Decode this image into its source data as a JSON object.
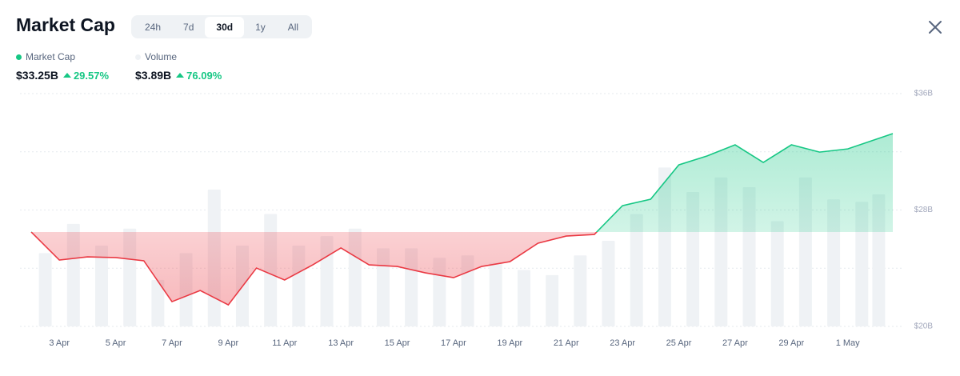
{
  "header": {
    "title": "Market Cap",
    "tabs": [
      "24h",
      "7d",
      "30d",
      "1y",
      "All"
    ],
    "active_tab": 2
  },
  "summary": [
    {
      "name": "Market Cap",
      "value": "$33.25B",
      "change": "29.57%"
    },
    {
      "name": "Volume",
      "value": "$3.89B",
      "change": "76.09%"
    }
  ],
  "chart_data": {
    "type": "area-line",
    "x": [
      0,
      1,
      2,
      3,
      4,
      5,
      6,
      7,
      8,
      9,
      10,
      11,
      12,
      13,
      14,
      15,
      16,
      17,
      18,
      19,
      20,
      21,
      22,
      23,
      24,
      25,
      26,
      27,
      28,
      29,
      30.6
    ],
    "xlim": [
      0,
      30.6
    ],
    "xticks": [
      {
        "value": 1,
        "label": "3 Apr"
      },
      {
        "value": 3,
        "label": "5 Apr"
      },
      {
        "value": 5,
        "label": "7 Apr"
      },
      {
        "value": 7,
        "label": "9 Apr"
      },
      {
        "value": 9,
        "label": "11 Apr"
      },
      {
        "value": 11,
        "label": "13 Apr"
      },
      {
        "value": 13,
        "label": "15 Apr"
      },
      {
        "value": 15,
        "label": "17 Apr"
      },
      {
        "value": 17,
        "label": "19 Apr"
      },
      {
        "value": 19,
        "label": "21 Apr"
      },
      {
        "value": 21,
        "label": "23 Apr"
      },
      {
        "value": 23,
        "label": "25 Apr"
      },
      {
        "value": 25,
        "label": "27 Apr"
      },
      {
        "value": 27,
        "label": "29 Apr"
      },
      {
        "value": 29,
        "label": "1 May"
      }
    ],
    "ylim": [
      20,
      36
    ],
    "yticks": [
      {
        "value": 20,
        "label": "$20B"
      },
      {
        "value": 28,
        "label": "$28B"
      },
      {
        "value": 36,
        "label": "$36B"
      }
    ],
    "minor_gridlines": [
      24,
      32
    ],
    "series": [
      {
        "name": "Market Cap",
        "color": "#16c784",
        "down_color": "#ea3943",
        "values": [
          26.49,
          24.56,
          24.78,
          24.73,
          24.51,
          21.7,
          22.47,
          21.48,
          24.01,
          23.19,
          24.23,
          25.39,
          24.23,
          24.12,
          23.68,
          23.35,
          24.12,
          24.45,
          25.72,
          26.21,
          26.32,
          28.3,
          28.74,
          31.1,
          31.71,
          32.48,
          31.27,
          32.48,
          31.98,
          32.2,
          33.25
        ]
      },
      {
        "name": "Volume",
        "color": "#eff2f5",
        "axis": "y2",
        "x": [
          0.5,
          1.5,
          2.5,
          3.5,
          4.5,
          5.5,
          6.5,
          7.5,
          8.5,
          9.5,
          10.5,
          11.5,
          12.5,
          13.5,
          14.5,
          15.5,
          16.5,
          17.5,
          18.5,
          19.5,
          20.5,
          21.5,
          22.5,
          23.5,
          24.5,
          25.5,
          26.5,
          27.5,
          28.5,
          29.5,
          30.1
        ],
        "values": [
          2.16,
          3.02,
          2.38,
          2.88,
          1.37,
          2.16,
          4.03,
          2.38,
          3.31,
          2.38,
          2.66,
          2.88,
          2.3,
          2.3,
          2.02,
          2.09,
          1.87,
          1.66,
          1.51,
          2.09,
          2.52,
          3.31,
          4.68,
          3.96,
          4.39,
          4.1,
          3.1,
          4.39,
          3.74,
          3.67,
          3.89
        ]
      }
    ],
    "y2lim": [
      0,
      8.2
    ]
  }
}
